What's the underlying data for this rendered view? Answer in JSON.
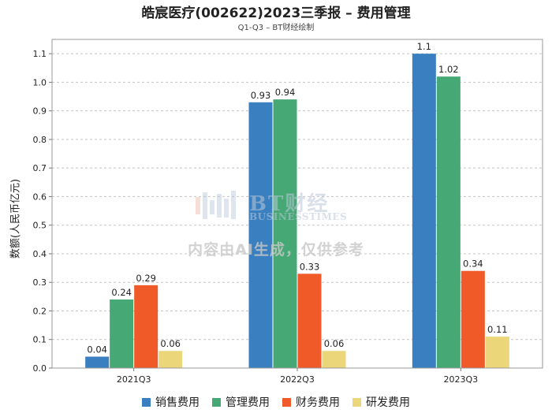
{
  "chart_data": {
    "type": "bar",
    "title": "皓宸医疗(002622)2023三季报 – 费用管理",
    "subtitle": "Q1-Q3 – BT财经绘制",
    "xlabel": "",
    "ylabel": "数额(人民币亿元)",
    "categories": [
      "2021Q3",
      "2022Q3",
      "2023Q3"
    ],
    "series": [
      {
        "name": "销售费用",
        "color": "#3a7fbf",
        "values": [
          0.04,
          0.93,
          1.1
        ]
      },
      {
        "name": "管理费用",
        "color": "#46a874",
        "values": [
          0.24,
          0.94,
          1.02
        ]
      },
      {
        "name": "财务费用",
        "color": "#f05a28",
        "values": [
          0.29,
          0.33,
          0.34
        ]
      },
      {
        "name": "研发费用",
        "color": "#ecd67a",
        "values": [
          0.06,
          0.06,
          0.11
        ]
      }
    ],
    "ylim": [
      0,
      1.15
    ],
    "yticks": [
      "0.0",
      "0.1",
      "0.2",
      "0.3",
      "0.4",
      "0.5",
      "0.6",
      "0.7",
      "0.8",
      "0.9",
      "1.0",
      "1.1"
    ],
    "grid": true,
    "legend_position": "bottom"
  },
  "watermark": {
    "brand": "BT财经",
    "sub": "BUSINESSTIMES",
    "notice": "内容由AI生成，仅供参考"
  }
}
